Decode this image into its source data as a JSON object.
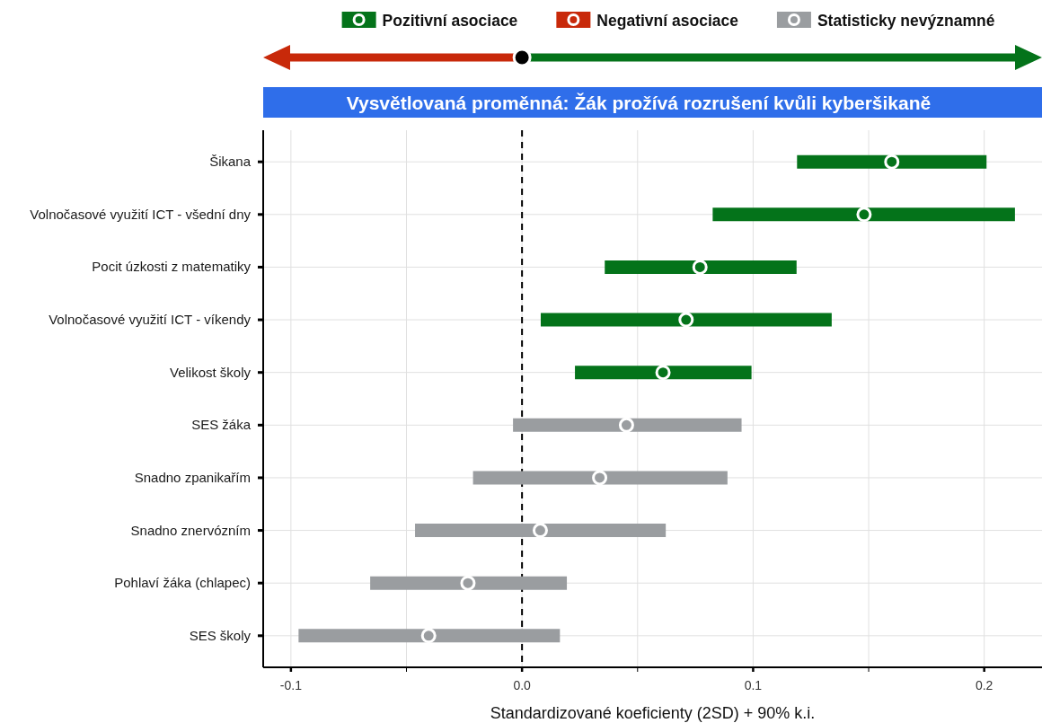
{
  "chart_data": {
    "type": "scatter",
    "orientation": "horizontal",
    "title": "Vysvětlovaná proměnná: Žák prožívá rozrušení kvůli kyberšikaně",
    "xlabel": "Standardizované koeficienty (2SD) + 90% k.i.",
    "categories": [
      "Šikana",
      "Volnočasové využití ICT - všední dny",
      "Pocit úzkosti z matematiky",
      "Volnočasové využití ICT - víkendy",
      "Velikost školy",
      "SES žáka",
      "Snadno zpanikařím",
      "Snadno znervózním",
      "Pohlaví žáka (chlapec)",
      "SES školy"
    ],
    "series": [
      {
        "name": "Pozitivní asociace",
        "color": "#04731a",
        "values": [
          0.16,
          0.148,
          0.077,
          0.071,
          0.061,
          null,
          null,
          null,
          null,
          null
        ],
        "errors": [
          [
            0.119,
            0.201
          ],
          [
            0.0825,
            0.2133
          ],
          [
            0.0358,
            0.1188
          ],
          [
            0.0081,
            0.134
          ],
          [
            0.0229,
            0.0993
          ],
          null,
          null,
          null,
          null,
          null
        ]
      },
      {
        "name": "Negativní asociace",
        "color": "#c8290a",
        "values": [
          null,
          null,
          null,
          null,
          null,
          null,
          null,
          null,
          null,
          null
        ]
      },
      {
        "name": "Statisticky nevýznamné",
        "color": "#9a9da0",
        "values": [
          null,
          null,
          null,
          null,
          null,
          0.0452,
          0.0336,
          0.0079,
          -0.0234,
          -0.0404
        ],
        "errors": [
          null,
          null,
          null,
          null,
          null,
          [
            -0.0039,
            0.095
          ],
          [
            -0.0212,
            0.0889
          ],
          [
            -0.0463,
            0.0622
          ],
          [
            -0.0657,
            0.0194
          ],
          [
            -0.0967,
            0.0164
          ]
        ]
      }
    ],
    "xlim": [
      -0.112,
      0.225
    ],
    "xticks": [
      -0.1,
      {
        "value": -0.05,
        "label": null
      },
      {
        "value": 0,
        "label": "0.0"
      },
      {
        "value": 0.05,
        "label": null
      },
      0.1,
      {
        "value": 0.15,
        "label": null
      },
      0.2
    ],
    "grid": true,
    "legend": "top",
    "marker": "circle",
    "ref_lines": [
      {
        "axis": "x",
        "value": 0,
        "line_style": "dashed",
        "color": "#000000"
      }
    ]
  }
}
